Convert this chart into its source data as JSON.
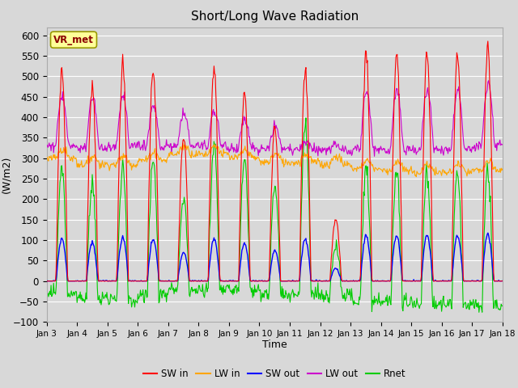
{
  "title": "Short/Long Wave Radiation",
  "xlabel": "Time",
  "ylabel": "(W/m2)",
  "ylim": [
    -100,
    620
  ],
  "annotation": "VR_met",
  "tick_labels": [
    "Jan 3",
    "Jan 4",
    "Jan 5",
    "Jan 6",
    "Jan 7",
    "Jan 8",
    "Jan 9",
    "Jan 10",
    "Jan 11",
    "Jan 12",
    "Jan 13",
    "Jan 14",
    "Jan 15",
    "Jan 16",
    "Jan 17",
    "Jan 18"
  ],
  "series_colors": {
    "SW_in": "#ff0000",
    "LW_in": "#ffa500",
    "SW_out": "#0000ff",
    "LW_out": "#cc00cc",
    "Rnet": "#00cc00"
  },
  "legend_labels": [
    "SW in",
    "LW in",
    "SW out",
    "LW out",
    "Rnet"
  ],
  "fig_bg_color": "#d8d8d8",
  "plot_bg_color": "#d8d8d8",
  "grid_color": "#ffffff"
}
